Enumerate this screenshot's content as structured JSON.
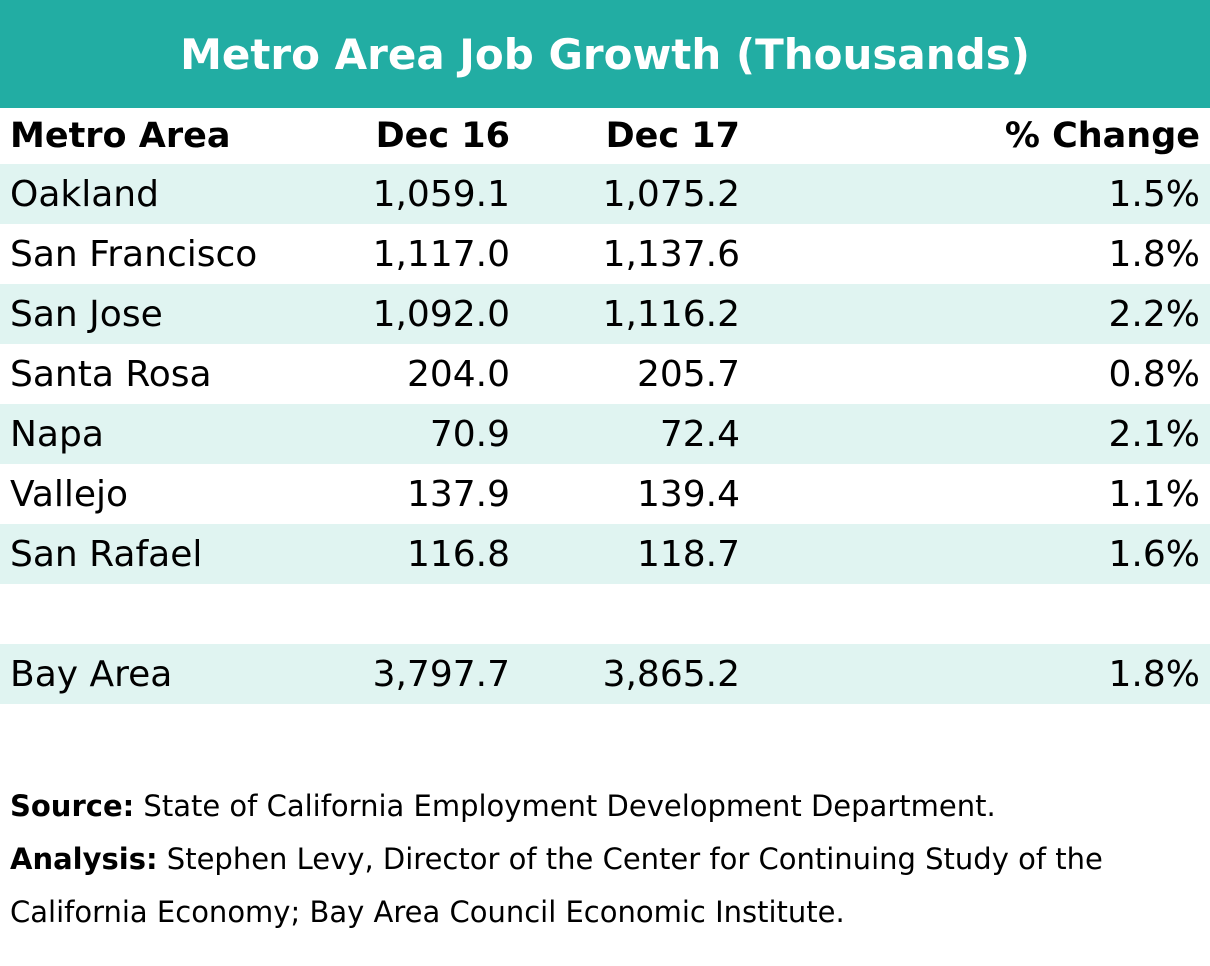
{
  "title": "Metro Area Job Growth (Thousands)",
  "colors": {
    "header_bg": "#22ada3",
    "row_shade": "#e0f4f1"
  },
  "chart_data": {
    "type": "table",
    "title": "Metro Area Job Growth (Thousands)",
    "columns": [
      "Metro Area",
      "Dec 16",
      "Dec 17",
      "% Change"
    ],
    "rows": [
      {
        "name": "Oakland",
        "dec16": "1,059.1",
        "dec17": "1,075.2",
        "pct": "1.5%"
      },
      {
        "name": "San Francisco",
        "dec16": "1,117.0",
        "dec17": "1,137.6",
        "pct": "1.8%"
      },
      {
        "name": "San Jose",
        "dec16": "1,092.0",
        "dec17": "1,116.2",
        "pct": "2.2%"
      },
      {
        "name": "Santa Rosa",
        "dec16": "204.0",
        "dec17": "205.7",
        "pct": "0.8%"
      },
      {
        "name": "Napa",
        "dec16": "70.9",
        "dec17": "72.4",
        "pct": "2.1%"
      },
      {
        "name": "Vallejo",
        "dec16": "137.9",
        "dec17": "139.4",
        "pct": "1.1%"
      },
      {
        "name": "San Rafael",
        "dec16": "116.8",
        "dec17": "118.7",
        "pct": "1.6%"
      }
    ],
    "total": {
      "name": "Bay Area",
      "dec16": "3,797.7",
      "dec17": "3,865.2",
      "pct": "1.8%"
    }
  },
  "notes": {
    "source_label": "Source:",
    "source_text": " State of California Employment Development Department.",
    "analysis_label": "Analysis:",
    "analysis_text": " Stephen Levy, Director of the Center for Continuing Study of the California Economy; Bay Area Council Economic Institute."
  }
}
